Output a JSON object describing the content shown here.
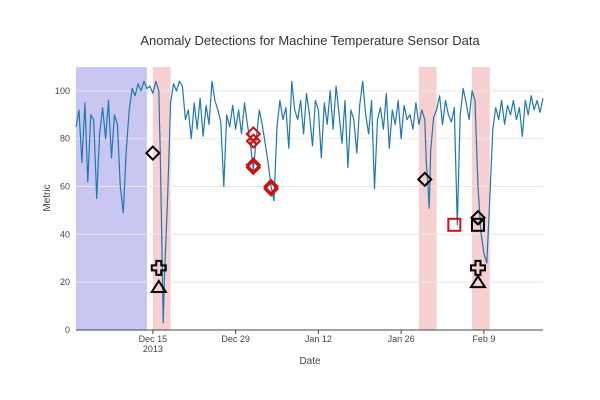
{
  "chart_data": {
    "type": "line",
    "title": "Anomaly Detections for Machine Temperature Sensor Data",
    "xlabel": "Date",
    "ylabel": "Metric",
    "x_range": [
      "2013-12-02",
      "2014-02-19"
    ],
    "ylim": [
      0,
      110
    ],
    "x_ticks": [
      {
        "date": "2013-12-15",
        "label": "Dec 15",
        "sublabel": "2013"
      },
      {
        "date": "2013-12-29",
        "label": "Dec 29",
        "sublabel": ""
      },
      {
        "date": "2014-01-12",
        "label": "Jan 12",
        "sublabel": ""
      },
      {
        "date": "2014-01-26",
        "label": "Jan 26",
        "sublabel": ""
      },
      {
        "date": "2014-02-09",
        "label": "Feb 9",
        "sublabel": ""
      }
    ],
    "y_ticks": [
      0,
      20,
      40,
      60,
      80,
      100
    ],
    "grid": "horizontal",
    "colors": {
      "line": "#1f77b4",
      "region_blue": "#c9c6f2",
      "region_red": "#f6d0d0",
      "marker_black": "#000000",
      "marker_red": "#cc1111"
    },
    "regions": [
      {
        "start": "2013-12-02",
        "end": "2013-12-14",
        "color": "blue"
      },
      {
        "start": "2013-12-15",
        "end": "2013-12-18",
        "color": "red"
      },
      {
        "start": "2014-01-29",
        "end": "2014-02-01",
        "color": "red"
      },
      {
        "start": "2014-02-07",
        "end": "2014-02-10",
        "color": "red"
      }
    ],
    "series": [
      {
        "values": [
          [
            "2013-12-02",
            85
          ],
          [
            "2013-12-02 12:00",
            92
          ],
          [
            "2013-12-03",
            70
          ],
          [
            "2013-12-03 12:00",
            95
          ],
          [
            "2013-12-04",
            62
          ],
          [
            "2013-12-04 12:00",
            90
          ],
          [
            "2013-12-05",
            88
          ],
          [
            "2013-12-05 12:00",
            55
          ],
          [
            "2013-12-06",
            82
          ],
          [
            "2013-12-06 12:00",
            93
          ],
          [
            "2013-12-07",
            80
          ],
          [
            "2013-12-07 12:00",
            96
          ],
          [
            "2013-12-08",
            72
          ],
          [
            "2013-12-08 12:00",
            90
          ],
          [
            "2013-12-09",
            86
          ],
          [
            "2013-12-09 12:00",
            60
          ],
          [
            "2013-12-10",
            49
          ],
          [
            "2013-12-10 12:00",
            75
          ],
          [
            "2013-12-11",
            92
          ],
          [
            "2013-12-11 12:00",
            101
          ],
          [
            "2013-12-12",
            98
          ],
          [
            "2013-12-12 12:00",
            103
          ],
          [
            "2013-12-13",
            100
          ],
          [
            "2013-12-13 12:00",
            104
          ],
          [
            "2013-12-14",
            101
          ],
          [
            "2013-12-14 12:00",
            102
          ],
          [
            "2013-12-15",
            99
          ],
          [
            "2013-12-15 12:00",
            104
          ],
          [
            "2013-12-16",
            100
          ],
          [
            "2013-12-16 06:00",
            75
          ],
          [
            "2013-12-16 12:00",
            40
          ],
          [
            "2013-12-16 18:00",
            3
          ],
          [
            "2013-12-17",
            25
          ],
          [
            "2013-12-17 12:00",
            55
          ],
          [
            "2013-12-18",
            95
          ],
          [
            "2013-12-18 12:00",
            103
          ],
          [
            "2013-12-19",
            100
          ],
          [
            "2013-12-19 12:00",
            104
          ],
          [
            "2013-12-20",
            102
          ],
          [
            "2013-12-20 12:00",
            88
          ],
          [
            "2013-12-21",
            92
          ],
          [
            "2013-12-21 12:00",
            80
          ],
          [
            "2013-12-22",
            95
          ],
          [
            "2013-12-22 12:00",
            84
          ],
          [
            "2013-12-23",
            97
          ],
          [
            "2013-12-23 12:00",
            81
          ],
          [
            "2013-12-24",
            94
          ],
          [
            "2013-12-24 12:00",
            86
          ],
          [
            "2013-12-25",
            104
          ],
          [
            "2013-12-25 12:00",
            96
          ],
          [
            "2013-12-26",
            92
          ],
          [
            "2013-12-26 12:00",
            87
          ],
          [
            "2013-12-27",
            60
          ],
          [
            "2013-12-27 12:00",
            90
          ],
          [
            "2013-12-28",
            85
          ],
          [
            "2013-12-28 12:00",
            94
          ],
          [
            "2013-12-29",
            84
          ],
          [
            "2013-12-29 12:00",
            92
          ],
          [
            "2013-12-30",
            82
          ],
          [
            "2013-12-30 12:00",
            95
          ],
          [
            "2013-12-31",
            86
          ],
          [
            "2013-12-31 12:00",
            78
          ],
          [
            "2014-01-01",
            67
          ],
          [
            "2014-01-01 12:00",
            80
          ],
          [
            "2014-01-02",
            92
          ],
          [
            "2014-01-02 12:00",
            86
          ],
          [
            "2014-01-03",
            78
          ],
          [
            "2014-01-03 12:00",
            70
          ],
          [
            "2014-01-04",
            60
          ],
          [
            "2014-01-04 12:00",
            54
          ],
          [
            "2014-01-05",
            85
          ],
          [
            "2014-01-05 12:00",
            96
          ],
          [
            "2014-01-06",
            88
          ],
          [
            "2014-01-06 12:00",
            93
          ],
          [
            "2014-01-07",
            76
          ],
          [
            "2014-01-07 12:00",
            104
          ],
          [
            "2014-01-08",
            92
          ],
          [
            "2014-01-08 12:00",
            88
          ],
          [
            "2014-01-09",
            96
          ],
          [
            "2014-01-09 12:00",
            82
          ],
          [
            "2014-01-10",
            99
          ],
          [
            "2014-01-10 12:00",
            90
          ],
          [
            "2014-01-11",
            77
          ],
          [
            "2014-01-11 12:00",
            96
          ],
          [
            "2014-01-12",
            92
          ],
          [
            "2014-01-12 12:00",
            72
          ],
          [
            "2014-01-13",
            95
          ],
          [
            "2014-01-13 12:00",
            86
          ],
          [
            "2014-01-14",
            100
          ],
          [
            "2014-01-14 12:00",
            84
          ],
          [
            "2014-01-15",
            102
          ],
          [
            "2014-01-15 12:00",
            90
          ],
          [
            "2014-01-16",
            78
          ],
          [
            "2014-01-16 12:00",
            96
          ],
          [
            "2014-01-17",
            68
          ],
          [
            "2014-01-17 12:00",
            92
          ],
          [
            "2014-01-18",
            88
          ],
          [
            "2014-01-18 12:00",
            74
          ],
          [
            "2014-01-19",
            94
          ],
          [
            "2014-01-19 12:00",
            104
          ],
          [
            "2014-01-20",
            90
          ],
          [
            "2014-01-20 12:00",
            82
          ],
          [
            "2014-01-21",
            96
          ],
          [
            "2014-01-21 12:00",
            59
          ],
          [
            "2014-01-22",
            88
          ],
          [
            "2014-01-22 12:00",
            93
          ],
          [
            "2014-01-23",
            84
          ],
          [
            "2014-01-23 12:00",
            99
          ],
          [
            "2014-01-24",
            76
          ],
          [
            "2014-01-24 12:00",
            92
          ],
          [
            "2014-01-25",
            86
          ],
          [
            "2014-01-25 12:00",
            96
          ],
          [
            "2014-01-26",
            80
          ],
          [
            "2014-01-26 12:00",
            94
          ],
          [
            "2014-01-27",
            88
          ],
          [
            "2014-01-27 12:00",
            90
          ],
          [
            "2014-01-28",
            84
          ],
          [
            "2014-01-28 12:00",
            95
          ],
          [
            "2014-01-29",
            86
          ],
          [
            "2014-01-29 12:00",
            92
          ],
          [
            "2014-01-30",
            88
          ],
          [
            "2014-01-30 06:00",
            70
          ],
          [
            "2014-01-30 12:00",
            62
          ],
          [
            "2014-01-30 18:00",
            51
          ],
          [
            "2014-01-31",
            75
          ],
          [
            "2014-01-31 12:00",
            89
          ],
          [
            "2014-02-01",
            92
          ],
          [
            "2014-02-01 12:00",
            98
          ],
          [
            "2014-02-02",
            86
          ],
          [
            "2014-02-02 12:00",
            96
          ],
          [
            "2014-02-03",
            90
          ],
          [
            "2014-02-03 12:00",
            87
          ],
          [
            "2014-02-04",
            93
          ],
          [
            "2014-02-04 12:00",
            44
          ],
          [
            "2014-02-05",
            90
          ],
          [
            "2014-02-05 12:00",
            101
          ],
          [
            "2014-02-06",
            95
          ],
          [
            "2014-02-06 12:00",
            88
          ],
          [
            "2014-02-07",
            100
          ],
          [
            "2014-02-07 12:00",
            96
          ],
          [
            "2014-02-08",
            60
          ],
          [
            "2014-02-08 12:00",
            41
          ],
          [
            "2014-02-09",
            32
          ],
          [
            "2014-02-09 12:00",
            28
          ],
          [
            "2014-02-10",
            55
          ],
          [
            "2014-02-10 12:00",
            84
          ],
          [
            "2014-02-11",
            93
          ],
          [
            "2014-02-11 12:00",
            88
          ],
          [
            "2014-02-12",
            96
          ],
          [
            "2014-02-12 12:00",
            86
          ],
          [
            "2014-02-13",
            94
          ],
          [
            "2014-02-13 12:00",
            90
          ],
          [
            "2014-02-14",
            96
          ],
          [
            "2014-02-14 12:00",
            88
          ],
          [
            "2014-02-15",
            93
          ],
          [
            "2014-02-15 12:00",
            81
          ],
          [
            "2014-02-16",
            96
          ],
          [
            "2014-02-16 12:00",
            90
          ],
          [
            "2014-02-17",
            98
          ],
          [
            "2014-02-17 12:00",
            92
          ],
          [
            "2014-02-18",
            96
          ],
          [
            "2014-02-18 12:00",
            91
          ],
          [
            "2014-02-19",
            97
          ]
        ]
      }
    ],
    "anomalies": [
      {
        "date": "2013-12-15",
        "y": 74,
        "symbol": "diamond",
        "color": "black"
      },
      {
        "date": "2013-12-16",
        "y": 26,
        "symbol": "cross",
        "color": "black"
      },
      {
        "date": "2013-12-16",
        "y": 18,
        "symbol": "triangle",
        "color": "black"
      },
      {
        "date": "2014-01-01",
        "y": 82,
        "symbol": "diamond",
        "color": "red"
      },
      {
        "date": "2014-01-01",
        "y": 79,
        "symbol": "x-diamond",
        "color": "red"
      },
      {
        "date": "2014-01-01",
        "y": 68,
        "symbol": "diamond",
        "color": "red"
      },
      {
        "date": "2014-01-01",
        "y": 69,
        "symbol": "diamond",
        "color": "red"
      },
      {
        "date": "2014-01-04",
        "y": 59,
        "symbol": "diamond",
        "color": "red"
      },
      {
        "date": "2014-01-04",
        "y": 60,
        "symbol": "diamond",
        "color": "red"
      },
      {
        "date": "2014-01-30",
        "y": 63,
        "symbol": "diamond",
        "color": "black"
      },
      {
        "date": "2014-02-04",
        "y": 44,
        "symbol": "square",
        "color": "red"
      },
      {
        "date": "2014-02-08",
        "y": 47,
        "symbol": "diamond",
        "color": "black"
      },
      {
        "date": "2014-02-08",
        "y": 44,
        "symbol": "x-square",
        "color": "black"
      },
      {
        "date": "2014-02-08",
        "y": 26,
        "symbol": "cross",
        "color": "black"
      },
      {
        "date": "2014-02-08",
        "y": 20,
        "symbol": "triangle",
        "color": "black"
      }
    ]
  }
}
